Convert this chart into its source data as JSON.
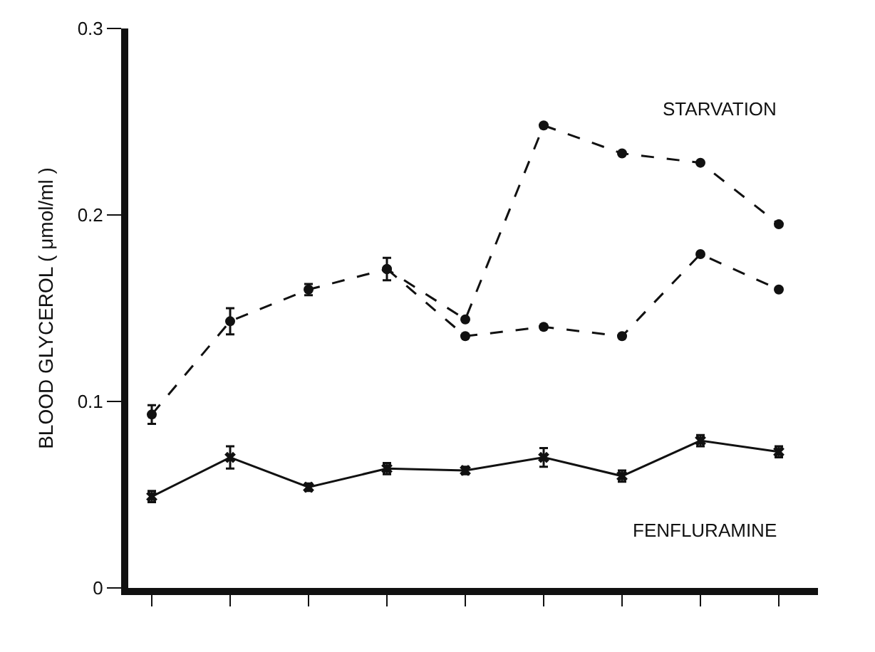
{
  "chart_data": {
    "type": "line",
    "ylabel": "BLOOD GLYCEROL ( μmol/ml )",
    "categories": [
      null,
      null,
      null,
      null,
      null,
      null,
      null,
      null,
      null
    ],
    "ylim": [
      0,
      0.3
    ],
    "yticks": [
      0,
      0.1,
      0.2,
      0.3
    ],
    "legend": false,
    "marker": "circle",
    "series": [
      {
        "name": "STARVATION",
        "color": "#111111",
        "line_style": "dashed",
        "values": [
          0.093,
          0.143,
          0.16,
          0.171,
          0.144,
          0.248,
          0.233,
          0.228,
          0.195
        ],
        "errors": [
          0.005,
          0.007,
          0.003,
          0.006,
          null,
          null,
          null,
          null,
          null
        ]
      },
      {
        "color": "#111111",
        "line_style": "dashed",
        "values": [
          null,
          null,
          null,
          0.171,
          0.135,
          0.14,
          0.135,
          0.179,
          0.16
        ]
      },
      {
        "name": "FENFLURAMINE",
        "color": "#111111",
        "line_style": "solid",
        "marker": "cross",
        "values": [
          0.049,
          0.07,
          0.054,
          0.064,
          0.063,
          0.07,
          0.06,
          0.079,
          0.073
        ],
        "errors": [
          0.003,
          0.006,
          0.002,
          0.003,
          0.002,
          0.005,
          0.003,
          0.003,
          0.003
        ]
      }
    ]
  }
}
